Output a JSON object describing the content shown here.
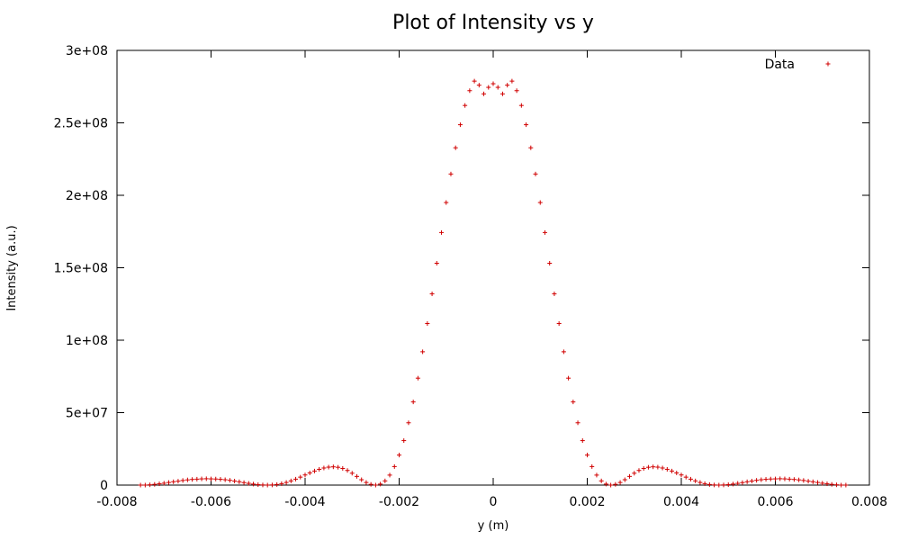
{
  "chart_data": {
    "type": "scatter",
    "title": "Plot of Intensity vs y",
    "xlabel": "y (m)",
    "ylabel": "Intensity (a.u.)",
    "xlim": [
      -0.008,
      0.008
    ],
    "ylim": [
      0,
      300000000
    ],
    "x_ticks": [
      -0.008,
      -0.006,
      -0.004,
      -0.002,
      0,
      0.002,
      0.004,
      0.006,
      0.008
    ],
    "x_tick_labels": [
      "-0.008",
      "-0.006",
      "-0.004",
      "-0.002",
      "0",
      "0.002",
      "0.004",
      "0.006",
      "0.008"
    ],
    "y_ticks": [
      0,
      50000000,
      100000000,
      150000000,
      200000000,
      250000000,
      300000000
    ],
    "y_tick_labels": [
      "0",
      "5e+07",
      "1e+08",
      "1.5e+08",
      "2e+08",
      "2.5e+08",
      "3e+08"
    ],
    "grid": false,
    "legend_position": "top-right",
    "series": [
      {
        "name": "Data",
        "color": "#d00000",
        "marker": "plus",
        "points": [
          [
            -0.0075,
            0
          ],
          [
            -0.0074,
            0
          ],
          [
            -0.0073,
            200000
          ],
          [
            -0.0072,
            500000
          ],
          [
            -0.0071,
            900000
          ],
          [
            -0.007,
            1300000
          ],
          [
            -0.0069,
            1800000
          ],
          [
            -0.0068,
            2300000
          ],
          [
            -0.0067,
            2700000
          ],
          [
            -0.0066,
            3200000
          ],
          [
            -0.0065,
            3600000
          ],
          [
            -0.0064,
            3900000
          ],
          [
            -0.0063,
            4100000
          ],
          [
            -0.0062,
            4300000
          ],
          [
            -0.0061,
            4400000
          ],
          [
            -0.006,
            4300000
          ],
          [
            -0.0059,
            4200000
          ],
          [
            -0.0058,
            4000000
          ],
          [
            -0.0057,
            3700000
          ],
          [
            -0.0056,
            3300000
          ],
          [
            -0.0055,
            2800000
          ],
          [
            -0.0054,
            2300000
          ],
          [
            -0.0053,
            1700000
          ],
          [
            -0.0052,
            1200000
          ],
          [
            -0.0051,
            700000
          ],
          [
            -0.005,
            300000
          ],
          [
            -0.0049,
            100000
          ],
          [
            -0.0048,
            0
          ],
          [
            -0.0047,
            100000
          ],
          [
            -0.0046,
            400000
          ],
          [
            -0.0045,
            1000000
          ],
          [
            -0.0044,
            1800000
          ],
          [
            -0.0043,
            2900000
          ],
          [
            -0.0042,
            4100000
          ],
          [
            -0.0041,
            5500000
          ],
          [
            -0.004,
            7000000
          ],
          [
            -0.0039,
            8400000
          ],
          [
            -0.0038,
            9700000
          ],
          [
            -0.0037,
            10900000
          ],
          [
            -0.0036,
            11800000
          ],
          [
            -0.0035,
            12400000
          ],
          [
            -0.0034,
            12600000
          ],
          [
            -0.0033,
            12300000
          ],
          [
            -0.0032,
            11500000
          ],
          [
            -0.0031,
            10100000
          ],
          [
            -0.003,
            8200000
          ],
          [
            -0.0029,
            6000000
          ],
          [
            -0.0028,
            3700000
          ],
          [
            -0.0027,
            1800000
          ],
          [
            -0.0026,
            500000
          ],
          [
            -0.0025,
            0
          ],
          [
            -0.0024,
            700000
          ],
          [
            -0.0023,
            2900000
          ],
          [
            -0.0022,
            6900000
          ],
          [
            -0.0021,
            12800000
          ],
          [
            -0.002,
            20700000
          ],
          [
            -0.0019,
            30700000
          ],
          [
            -0.0018,
            43000000
          ],
          [
            -0.0017,
            57400000
          ],
          [
            -0.0016,
            73800000
          ],
          [
            -0.0015,
            92000000
          ],
          [
            -0.0014,
            111500000
          ],
          [
            -0.0013,
            132000000
          ],
          [
            -0.0012,
            153100000
          ],
          [
            -0.0011,
            174300000
          ],
          [
            -0.001,
            195000000
          ],
          [
            -0.0009,
            214700000
          ],
          [
            -0.0008,
            232800000
          ],
          [
            -0.0007,
            248700000
          ],
          [
            -0.0006,
            262000000
          ],
          [
            -0.0005,
            272200000
          ],
          [
            -0.0004,
            278800000
          ],
          [
            -0.0003,
            276000000
          ],
          [
            -0.0002,
            270000000
          ],
          [
            -0.0001,
            274500000
          ],
          [
            0.0,
            277000000
          ],
          [
            0.0001,
            274500000
          ],
          [
            0.0002,
            270000000
          ],
          [
            0.0003,
            276000000
          ],
          [
            0.0004,
            278800000
          ],
          [
            0.0005,
            272200000
          ],
          [
            0.0006,
            262000000
          ],
          [
            0.0007,
            248700000
          ],
          [
            0.0008,
            232800000
          ],
          [
            0.0009,
            214700000
          ],
          [
            0.001,
            195000000
          ],
          [
            0.0011,
            174300000
          ],
          [
            0.0012,
            153100000
          ],
          [
            0.0013,
            132000000
          ],
          [
            0.0014,
            111500000
          ],
          [
            0.0015,
            92000000
          ],
          [
            0.0016,
            73800000
          ],
          [
            0.0017,
            57400000
          ],
          [
            0.0018,
            43000000
          ],
          [
            0.0019,
            30700000
          ],
          [
            0.002,
            20700000
          ],
          [
            0.0021,
            12800000
          ],
          [
            0.0022,
            6900000
          ],
          [
            0.0023,
            2900000
          ],
          [
            0.0024,
            700000
          ],
          [
            0.0025,
            0
          ],
          [
            0.0026,
            500000
          ],
          [
            0.0027,
            1800000
          ],
          [
            0.0028,
            3700000
          ],
          [
            0.0029,
            6000000
          ],
          [
            0.003,
            8200000
          ],
          [
            0.0031,
            10100000
          ],
          [
            0.0032,
            11500000
          ],
          [
            0.0033,
            12300000
          ],
          [
            0.0034,
            12600000
          ],
          [
            0.0035,
            12400000
          ],
          [
            0.0036,
            11800000
          ],
          [
            0.0037,
            10900000
          ],
          [
            0.0038,
            9700000
          ],
          [
            0.0039,
            8400000
          ],
          [
            0.004,
            7000000
          ],
          [
            0.0041,
            5500000
          ],
          [
            0.0042,
            4100000
          ],
          [
            0.0043,
            2900000
          ],
          [
            0.0044,
            1800000
          ],
          [
            0.0045,
            1000000
          ],
          [
            0.0046,
            400000
          ],
          [
            0.0047,
            100000
          ],
          [
            0.0048,
            0
          ],
          [
            0.0049,
            100000
          ],
          [
            0.005,
            300000
          ],
          [
            0.0051,
            700000
          ],
          [
            0.0052,
            1200000
          ],
          [
            0.0053,
            1700000
          ],
          [
            0.0054,
            2300000
          ],
          [
            0.0055,
            2800000
          ],
          [
            0.0056,
            3300000
          ],
          [
            0.0057,
            3700000
          ],
          [
            0.0058,
            4000000
          ],
          [
            0.0059,
            4200000
          ],
          [
            0.006,
            4300000
          ],
          [
            0.0061,
            4400000
          ],
          [
            0.0062,
            4300000
          ],
          [
            0.0063,
            4100000
          ],
          [
            0.0064,
            3900000
          ],
          [
            0.0065,
            3600000
          ],
          [
            0.0066,
            3200000
          ],
          [
            0.0067,
            2700000
          ],
          [
            0.0068,
            2300000
          ],
          [
            0.0069,
            1800000
          ],
          [
            0.007,
            1300000
          ],
          [
            0.0071,
            900000
          ],
          [
            0.0072,
            500000
          ],
          [
            0.0073,
            200000
          ],
          [
            0.0074,
            0
          ],
          [
            0.0075,
            0
          ]
        ]
      }
    ]
  }
}
